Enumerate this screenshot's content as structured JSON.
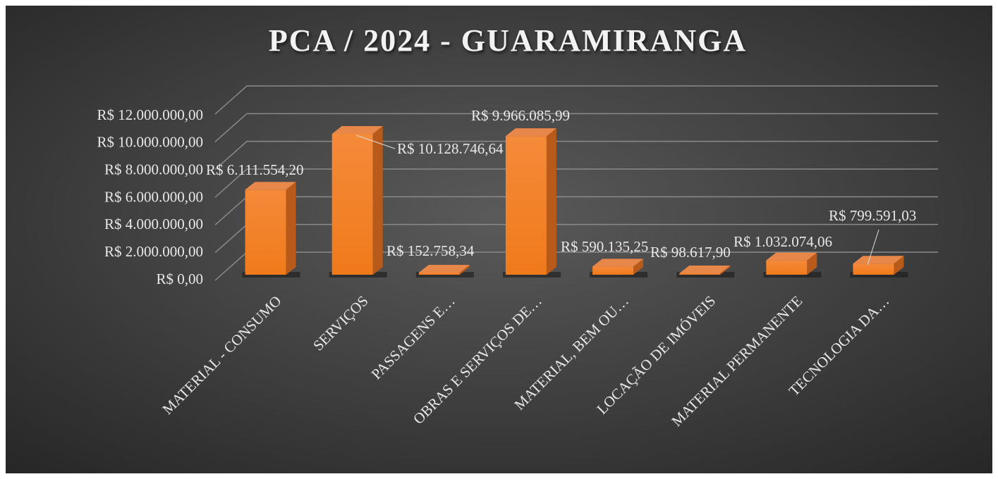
{
  "chart_data": {
    "type": "bar3d",
    "title": "PCA / 2024 - GUARAMIRANGA",
    "categories": [
      "MATERIAL - CONSUMO",
      "SERVIÇOS",
      "PASSAGENS E…",
      "OBRAS E SERVIÇOS DE…",
      "MATERIAL, BEM OU…",
      "LOCAÇÃO DE IMÓVEIS",
      "MATERIAL PERMANENTE",
      "TECNOLOGIA DA…"
    ],
    "values": [
      6111554.2,
      10128746.64,
      152758.34,
      9966085.99,
      590135.25,
      98617.9,
      1032074.06,
      799591.03
    ],
    "value_labels": [
      "R$ 6.111.554,20",
      "R$ 10.128.746,64",
      "R$ 152.758,34",
      "R$ 9.966.085,99",
      "R$ 590.135,25",
      "R$ 98.617,90",
      "R$ 1.032.074,06",
      "R$ 799.591,03"
    ],
    "color": "#f47c20",
    "ylim": [
      0,
      12000000
    ],
    "yticks": [
      {
        "value": 0,
        "label": "R$ 0,00"
      },
      {
        "value": 2000000,
        "label": "R$ 2.000.000,00"
      },
      {
        "value": 4000000,
        "label": "R$ 4.000.000,00"
      },
      {
        "value": 6000000,
        "label": "R$ 6.000.000,00"
      },
      {
        "value": 8000000,
        "label": "R$ 8.000.000,00"
      },
      {
        "value": 10000000,
        "label": "R$ 10.000.000,00"
      },
      {
        "value": 12000000,
        "label": "R$ 12.000.000,00"
      }
    ],
    "grid": true
  }
}
